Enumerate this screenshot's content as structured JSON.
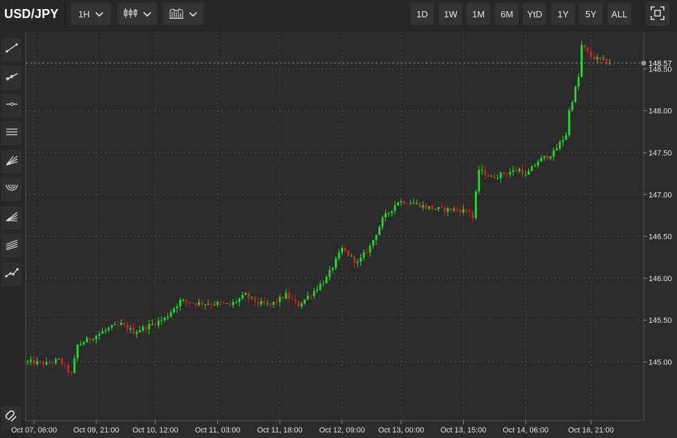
{
  "header": {
    "symbol": "USD/JPY",
    "interval": "1H",
    "ranges": [
      "1D",
      "1W",
      "1M",
      "6M",
      "YtD",
      "1Y",
      "5Y",
      "ALL"
    ]
  },
  "icons": {
    "chart_type": "candlestick-icon",
    "indicators": "indicators-icon",
    "fullscreen": "fullscreen-icon",
    "tools": [
      "trend-line-icon",
      "ray-icon",
      "horizontal-line-icon",
      "parallel-channel-icon",
      "fan-icon",
      "arc-icon",
      "fib-retracement-icon",
      "pitchfork-icon",
      "polyline-icon",
      "magnet-icon"
    ]
  },
  "colors": {
    "up": "#22e02a",
    "down": "#d0202a",
    "background": "#2a2b2a",
    "grid": "#4a4b4a"
  },
  "chart_data": {
    "type": "candlestick",
    "symbol": "USD/JPY",
    "current_price": "148.57",
    "y_ticks": [
      "148.50",
      "148.00",
      "147.50",
      "147.00",
      "146.50",
      "146.00",
      "145.50",
      "145.00"
    ],
    "x_ticks": [
      "Oct 07, 06:00",
      "Oct 09, 21:00",
      "Oct 10, 12:00",
      "Oct 11, 03:00",
      "Oct 11, 18:00",
      "Oct 12, 09:00",
      "Oct 13, 00:00",
      "Oct 13, 15:00",
      "Oct 14, 06:00",
      "Oct 16, 21:00"
    ],
    "ylim": [
      144.3,
      148.95
    ],
    "grid": true,
    "close_path": [
      [
        0,
        145.0
      ],
      [
        6,
        144.98
      ],
      [
        10,
        145.02
      ],
      [
        14,
        144.85
      ],
      [
        16,
        145.2
      ],
      [
        21,
        145.3
      ],
      [
        26,
        145.4
      ],
      [
        30,
        145.45
      ],
      [
        34,
        145.36
      ],
      [
        40,
        145.45
      ],
      [
        44,
        145.52
      ],
      [
        49,
        145.73
      ],
      [
        55,
        145.7
      ],
      [
        61,
        145.7
      ],
      [
        65,
        145.68
      ],
      [
        70,
        145.8
      ],
      [
        74,
        145.7
      ],
      [
        78,
        145.68
      ],
      [
        83,
        145.8
      ],
      [
        87,
        145.68
      ],
      [
        92,
        145.85
      ],
      [
        96,
        146.0
      ],
      [
        101,
        146.35
      ],
      [
        106,
        146.18
      ],
      [
        110,
        146.38
      ],
      [
        114,
        146.7
      ],
      [
        119,
        146.92
      ],
      [
        124,
        146.9
      ],
      [
        128,
        146.85
      ],
      [
        133,
        146.82
      ],
      [
        138,
        146.82
      ],
      [
        142,
        146.8
      ],
      [
        143,
        146.72
      ],
      [
        145,
        147.3
      ],
      [
        149,
        147.2
      ],
      [
        153,
        147.25
      ],
      [
        158,
        147.3
      ],
      [
        160,
        147.22
      ],
      [
        164,
        147.4
      ],
      [
        169,
        147.5
      ],
      [
        173,
        147.72
      ],
      [
        174,
        148.0
      ],
      [
        177,
        148.4
      ],
      [
        178,
        148.78
      ],
      [
        181,
        148.65
      ],
      [
        184,
        148.6
      ],
      [
        187,
        148.57
      ]
    ],
    "n_candles": 188
  }
}
